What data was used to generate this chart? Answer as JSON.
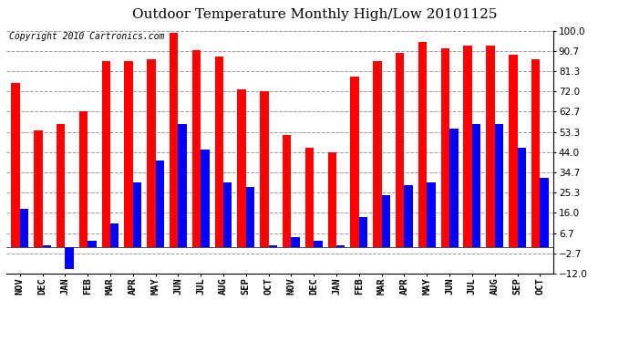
{
  "title": "Outdoor Temperature Monthly High/Low 20101125",
  "copyright": "Copyright 2010 Cartronics.com",
  "months": [
    "NOV",
    "DEC",
    "JAN",
    "FEB",
    "MAR",
    "APR",
    "MAY",
    "JUN",
    "JUL",
    "AUG",
    "SEP",
    "OCT",
    "NOV",
    "DEC",
    "JAN",
    "FEB",
    "MAR",
    "APR",
    "MAY",
    "JUN",
    "JUL",
    "AUG",
    "SEP",
    "OCT"
  ],
  "highs": [
    76,
    54,
    57,
    63,
    86,
    86,
    87,
    99,
    91,
    88,
    73,
    72,
    52,
    46,
    44,
    79,
    86,
    90,
    95,
    92,
    93,
    93,
    89,
    87
  ],
  "lows": [
    18,
    1,
    -10,
    3,
    11,
    30,
    40,
    57,
    45,
    30,
    28,
    1,
    5,
    3,
    1,
    14,
    24,
    29,
    30,
    55,
    57,
    57,
    46,
    32
  ],
  "high_color": "#FF0000",
  "low_color": "#0000FF",
  "background_color": "#FFFFFF",
  "yticks": [
    100.0,
    90.7,
    81.3,
    72.0,
    62.7,
    53.3,
    44.0,
    34.7,
    25.3,
    16.0,
    6.7,
    -2.7,
    -12.0
  ],
  "ymin": -12.0,
  "ymax": 100.0,
  "bar_width": 0.38,
  "title_fontsize": 11,
  "copyright_fontsize": 7,
  "tick_fontsize": 7.5,
  "grid_color": "#999999",
  "axis_bg": "#FFFFFF"
}
